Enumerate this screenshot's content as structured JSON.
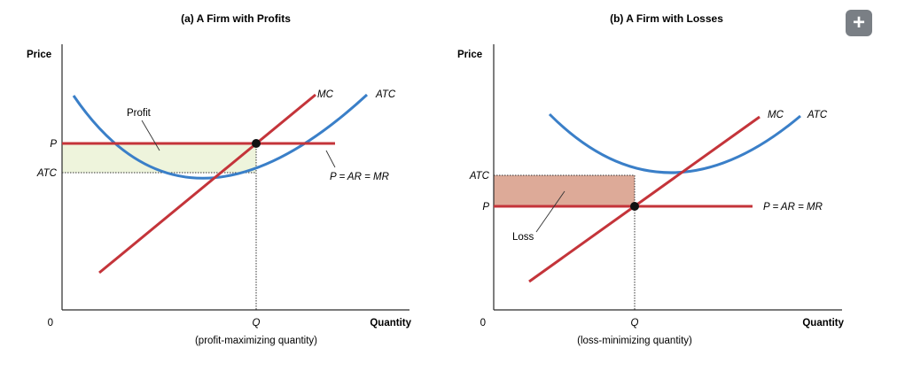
{
  "panel_a": {
    "title": "(a) A Firm with Profits",
    "y_axis_label": "Price",
    "x_axis_label": "Quantity",
    "origin_label": "0",
    "price_tick": "P",
    "atc_tick": "ATC",
    "q_tick": "Q",
    "q_caption": "(profit-maximizing quantity)",
    "mc_label": "MC",
    "atc_label": "ATC",
    "demand_label": "P = AR = MR",
    "area_label": "Profit"
  },
  "panel_b": {
    "title": "(b) A Firm with Losses",
    "y_axis_label": "Price",
    "x_axis_label": "Quantity",
    "origin_label": "0",
    "price_tick": "P",
    "atc_tick": "ATC",
    "q_tick": "Q",
    "q_caption": "(loss-minimizing quantity)",
    "mc_label": "MC",
    "atc_label": "ATC",
    "demand_label": "P = AR = MR",
    "area_label": "Loss"
  },
  "zoom_button": {
    "icon": "plus-icon",
    "glyph": "+"
  },
  "colors": {
    "mc_and_price": "#c4343a",
    "atc_curve": "#3a7fc8",
    "profit_fill": "#eef4dc",
    "loss_fill": "#ddaa98",
    "axis": "#2a2a2a"
  }
}
